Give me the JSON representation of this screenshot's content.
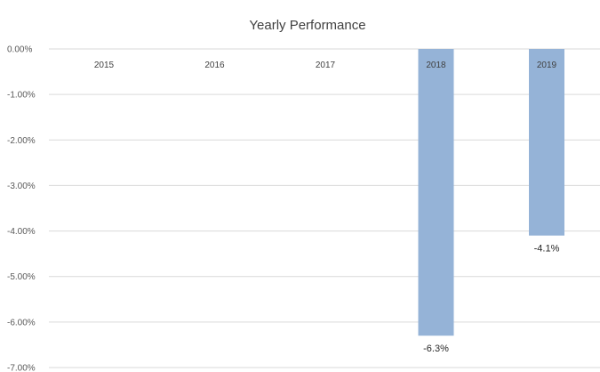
{
  "chart_data": {
    "type": "bar",
    "title": "Yearly Performance",
    "categories": [
      "2015",
      "2016",
      "2017",
      "2018",
      "2019"
    ],
    "values": [
      0,
      0,
      0,
      -6.3,
      -4.1
    ],
    "value_unit": "%",
    "data_labels": [
      "",
      "",
      "",
      "-6.3%",
      "-4.1%"
    ],
    "ylim": [
      -7,
      0
    ],
    "y_ticks": [
      "0.00%",
      "-1.00%",
      "-2.00%",
      "-3.00%",
      "-4.00%",
      "-5.00%",
      "-6.00%",
      "-7.00%"
    ],
    "grid": true,
    "legend": "none",
    "bar_color": "#95b3d7"
  }
}
